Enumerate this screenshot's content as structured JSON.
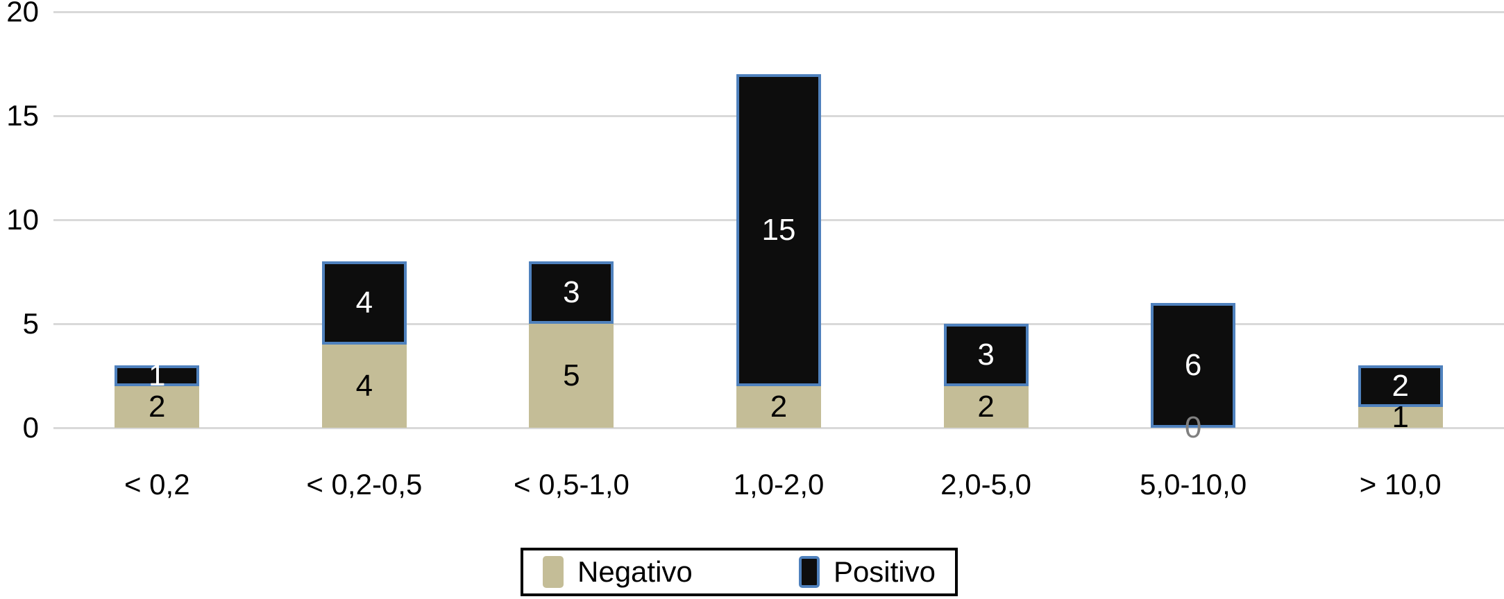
{
  "chart_data": {
    "type": "bar",
    "stacked": true,
    "title": "",
    "xlabel": "",
    "ylabel": "",
    "categories": [
      "< 0,2",
      "< 0,2-0,5",
      "< 0,5-1,0",
      "1,0-2,0",
      "2,0-5,0",
      "5,0-10,0",
      "> 10,0"
    ],
    "series": [
      {
        "name": "Negativo",
        "values": [
          2,
          4,
          5,
          2,
          2,
          0,
          1
        ],
        "color": "#C4BD97",
        "label_color": "#000000",
        "zero_label_color": "#808080"
      },
      {
        "name": "Positivo",
        "values": [
          1,
          4,
          3,
          15,
          3,
          6,
          2
        ],
        "color": "#0D0D0D",
        "border_color": "#4F81BD",
        "label_color": "#FFFFFF"
      }
    ],
    "ylim": [
      0,
      20
    ],
    "yticks": [
      0,
      5,
      10,
      15,
      20
    ],
    "ytick_labels": [
      "0",
      "5",
      "10",
      "15",
      "20"
    ],
    "grid": true,
    "gridline_color": "#D9D9D9",
    "background_color": "#FFFFFF",
    "legend_position": "bottom-center"
  }
}
